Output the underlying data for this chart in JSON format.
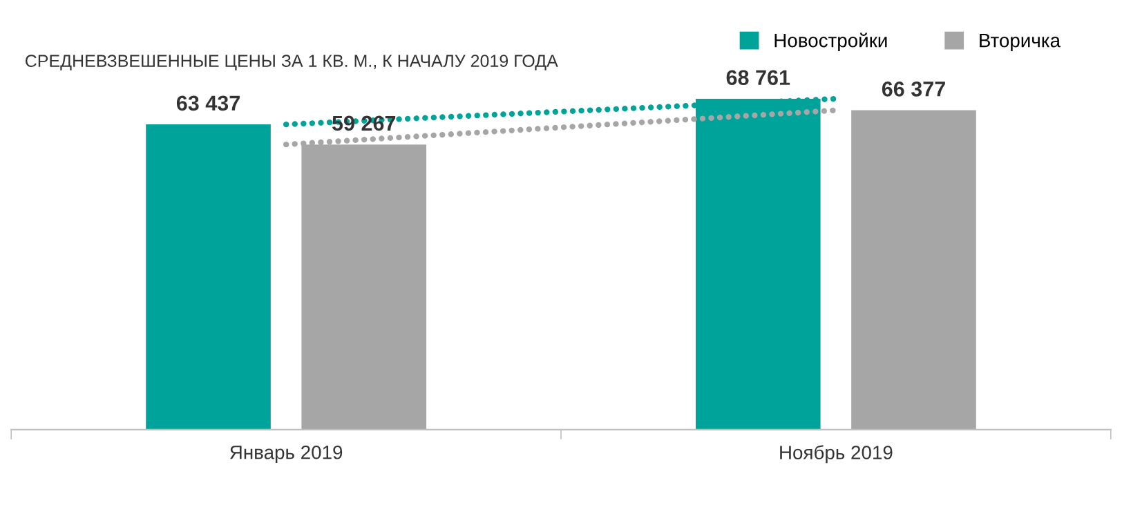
{
  "chart_data": {
    "type": "bar",
    "title": "СРЕДНЕВЗВЕШЕННЫЕ ЦЕНЫ ЗА 1 КВ. М., К НАЧАЛУ 2019 ГОДА",
    "categories": [
      "Январь 2019",
      "Ноябрь 2019"
    ],
    "series": [
      {
        "name": "Новостройки",
        "color": "#00a39a",
        "values": [
          63437,
          68761
        ],
        "value_labels": [
          "63 437",
          "68 761"
        ]
      },
      {
        "name": "Вторичка",
        "color": "#a6a6a6",
        "values": [
          59267,
          66377
        ],
        "value_labels": [
          "59 267",
          "66 377"
        ]
      },
      {
        "type": "line",
        "line_style": "dotted",
        "color": "#00a39a",
        "values": [
          63437,
          68761
        ]
      },
      {
        "type": "line",
        "line_style": "dotted",
        "color": "#a6a6a6",
        "values": [
          59267,
          66377
        ]
      }
    ],
    "tick_labels": "x",
    "legend": "top right",
    "grid": false
  }
}
